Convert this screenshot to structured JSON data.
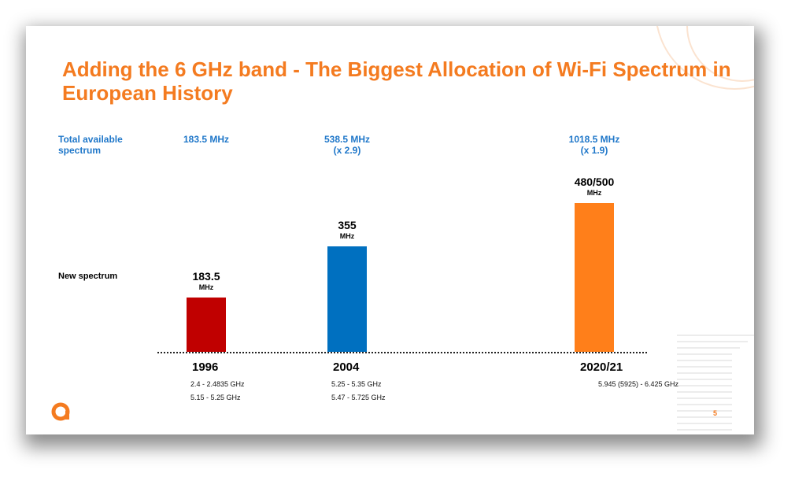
{
  "title": "Adding the 6 GHz band - The Biggest Allocation of Wi-Fi Spectrum in European History",
  "row_labels": {
    "total": "Total available spectrum",
    "new": "New spectrum"
  },
  "page_number": "5",
  "logo": "a",
  "colors": {
    "title": "#f47b20",
    "total": "#1f77c9"
  },
  "chart_data": {
    "type": "bar",
    "categories": [
      "1996",
      "2004",
      "2020/21"
    ],
    "values": [
      183.5,
      355,
      500
    ],
    "value_labels": [
      "183.5",
      "355",
      "480/500"
    ],
    "unit": "MHz",
    "colors": [
      "#c00000",
      "#0070c0",
      "#ff7f1a"
    ],
    "totals": [
      {
        "value": "183.5 MHz",
        "multiplier": ""
      },
      {
        "value": "538.5 MHz",
        "multiplier": "(x 2.9)"
      },
      {
        "value": "1018.5 MHz",
        "multiplier": "(x 1.9)"
      }
    ],
    "bands": [
      [
        "2.4 - 2.4835 GHz",
        "5.15 - 5.25 GHz"
      ],
      [
        "5.25 - 5.35 GHz",
        "5.47 - 5.725 GHz"
      ],
      [
        "5.945 (5925) - 6.425 GHz"
      ]
    ],
    "ylim": [
      0,
      500
    ],
    "grid": false
  }
}
